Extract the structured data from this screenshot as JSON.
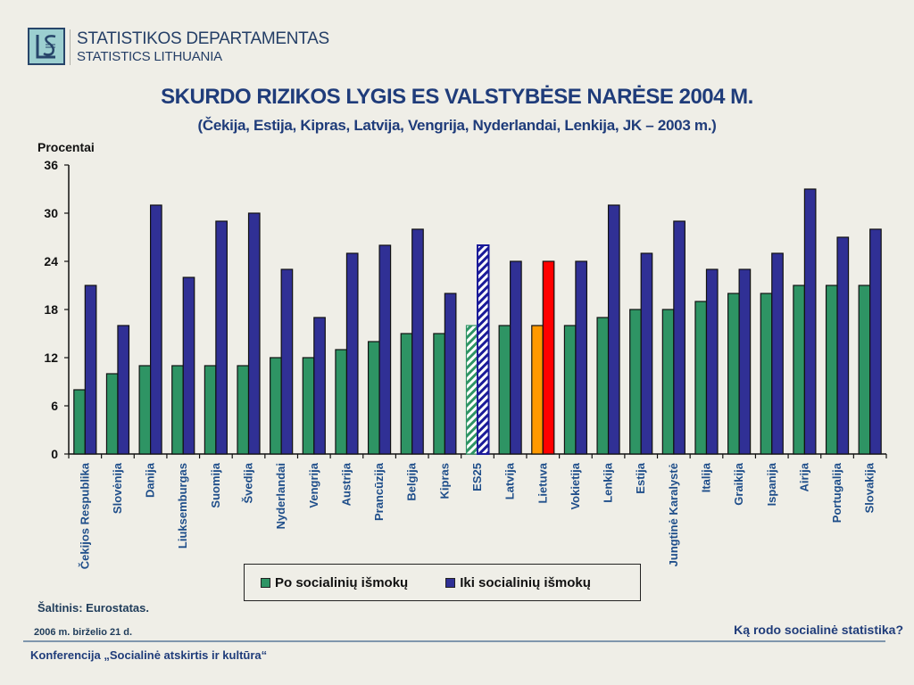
{
  "header": {
    "org_line1": "STATISTIKOS DEPARTAMENTAS",
    "org_line2": "STATISTICS LITHUANIA",
    "logo_icon": "ls-logo-icon"
  },
  "footer": {
    "source": "Šaltinis: Eurostatas.",
    "date": "2006 m. birželio 21 d.",
    "question": "Ką rodo socialinė statistika?",
    "conference": "Konferencija „Socialinė atskirtis ir kultūra“"
  },
  "colors": {
    "after": "#2e9464",
    "before": "#303095",
    "lt_after": "#ff9900",
    "lt_before": "#ff0000",
    "title": "#1f3c7a"
  },
  "chart_data": {
    "type": "bar",
    "title": "SKURDO RIZIKOS LYGIS ES VALSTYBĖSE NARĖSE 2004 M.",
    "subtitle": "(Čekija, Estija, Kipras, Latvija, Vengrija, Nyderlandai, Lenkija, JK – 2003 m.)",
    "xlabel": "",
    "ylabel": "Procentai",
    "ylim": [
      0,
      36
    ],
    "yticks": [
      0,
      6,
      12,
      18,
      24,
      30,
      36
    ],
    "grid": false,
    "legend_position": "bottom",
    "categories": [
      "Čekijos Respublika",
      "Slovėnija",
      "Danija",
      "Liuksemburgas",
      "Suomija",
      "Švedija",
      "Nyderlandai",
      "Vengrija",
      "Austrija",
      "Prancūzija",
      "Belgija",
      "Kipras",
      "ES25",
      "Latvija",
      "Lietuva",
      "Vokietija",
      "Lenkija",
      "Estija",
      "Jungtinė Karalystė",
      "Italija",
      "Graikija",
      "Ispanija",
      "Airija",
      "Portugalija",
      "Slovakija"
    ],
    "series": [
      {
        "name": "Po socialinių išmokų",
        "values": [
          8,
          10,
          11,
          11,
          11,
          11,
          12,
          12,
          13,
          14,
          15,
          15,
          16,
          16,
          16,
          16,
          17,
          18,
          18,
          19,
          20,
          20,
          21,
          21,
          21
        ]
      },
      {
        "name": "Iki socialinių išmokų",
        "values": [
          21,
          16,
          31,
          22,
          29,
          30,
          23,
          17,
          25,
          26,
          28,
          20,
          26,
          24,
          24,
          24,
          31,
          25,
          29,
          23,
          23,
          25,
          33,
          27,
          28
        ]
      }
    ],
    "highlights": {
      "ES25": "hatched",
      "Lietuva": "orange-red"
    }
  }
}
